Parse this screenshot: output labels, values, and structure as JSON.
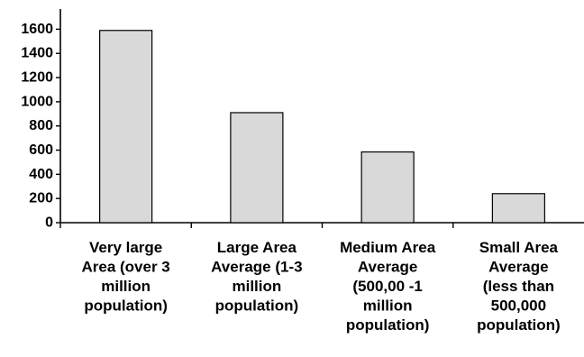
{
  "chart_data": {
    "type": "bar",
    "categories": [
      [
        "Very large",
        "Area (over 3",
        "million",
        "population)"
      ],
      [
        "Large Area",
        "Average (1-3",
        "million",
        "population)"
      ],
      [
        "Medium Area",
        "Average",
        "(500,00 -1",
        "million",
        "population)"
      ],
      [
        "Small Area",
        "Average",
        "(less than",
        "500,000",
        "population)"
      ]
    ],
    "values": [
      1590,
      910,
      585,
      240
    ],
    "yticks": [
      0,
      200,
      400,
      600,
      800,
      1000,
      1200,
      1400,
      1600
    ],
    "ylim": [
      0,
      1700
    ],
    "grid": false,
    "legend": "none",
    "bar_color": "#d9d9d9",
    "bar_stroke": "#000000"
  }
}
